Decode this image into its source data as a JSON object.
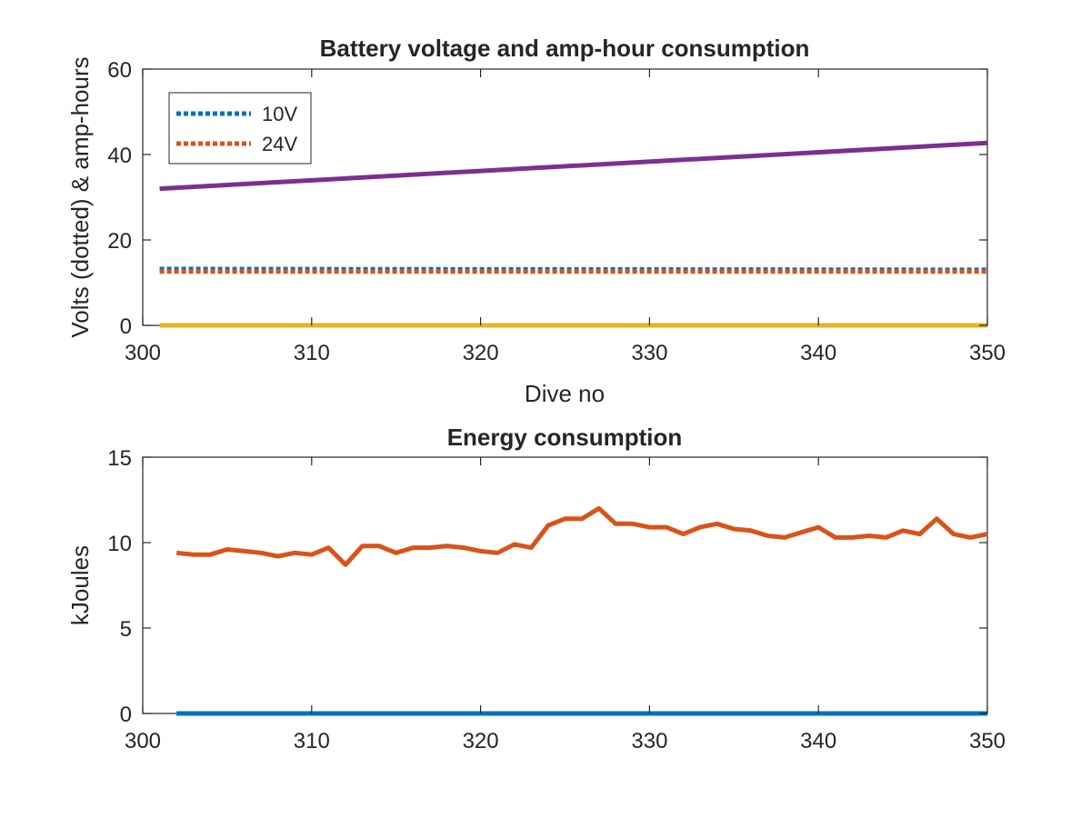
{
  "chart_data": [
    {
      "type": "line",
      "title": "Battery voltage and amp-hour consumption",
      "xlabel": "Dive no",
      "ylabel": "Volts (dotted) & amp-hours",
      "xlim": [
        300,
        350
      ],
      "ylim": [
        0,
        60
      ],
      "xticks": [
        300,
        310,
        320,
        330,
        340,
        350
      ],
      "yticks": [
        0,
        20,
        40,
        60
      ],
      "legend_position": "top-left",
      "grid": false,
      "series": [
        {
          "name": "10V",
          "style": "dotted",
          "color": "#0072BD",
          "x": [
            301,
            350
          ],
          "y": [
            13.2,
            13.0
          ]
        },
        {
          "name": "24V",
          "style": "dotted",
          "color": "#D95319",
          "x": [
            301,
            350
          ],
          "y": [
            12.6,
            12.6
          ]
        },
        {
          "style": "solid",
          "color": "#7E2F8E",
          "x": [
            301,
            350
          ],
          "y": [
            32.0,
            42.7
          ]
        },
        {
          "style": "solid",
          "color": "#EDB120",
          "x": [
            301,
            350
          ],
          "y": [
            0,
            0
          ]
        }
      ]
    },
    {
      "type": "line",
      "title": "Energy consumption",
      "xlabel": "",
      "ylabel": "kJoules",
      "xlim": [
        300,
        350
      ],
      "ylim": [
        0,
        15
      ],
      "xticks": [
        300,
        310,
        320,
        330,
        340,
        350
      ],
      "yticks": [
        0,
        5,
        10,
        15
      ],
      "grid": false,
      "series": [
        {
          "style": "solid",
          "color": "#D95319",
          "x": [
            302,
            303,
            304,
            305,
            306,
            307,
            308,
            309,
            310,
            311,
            312,
            313,
            314,
            315,
            316,
            317,
            318,
            319,
            320,
            321,
            322,
            323,
            324,
            325,
            326,
            327,
            328,
            329,
            330,
            331,
            332,
            333,
            334,
            335,
            336,
            337,
            338,
            339,
            340,
            341,
            342,
            343,
            344,
            345,
            346,
            347,
            348,
            349,
            350
          ],
          "y": [
            9.4,
            9.3,
            9.3,
            9.6,
            9.5,
            9.4,
            9.2,
            9.4,
            9.3,
            9.7,
            8.7,
            9.8,
            9.8,
            9.4,
            9.7,
            9.7,
            9.8,
            9.7,
            9.5,
            9.4,
            9.9,
            9.7,
            11.0,
            11.4,
            11.4,
            12.0,
            11.1,
            11.1,
            10.9,
            10.9,
            10.5,
            10.9,
            11.1,
            10.8,
            10.7,
            10.4,
            10.3,
            10.6,
            10.9,
            10.3,
            10.3,
            10.4,
            10.3,
            10.7,
            10.5,
            11.4,
            10.5,
            10.3,
            10.5
          ]
        },
        {
          "style": "solid",
          "color": "#0072BD",
          "x": [
            302,
            350
          ],
          "y": [
            0,
            0
          ]
        }
      ]
    }
  ]
}
